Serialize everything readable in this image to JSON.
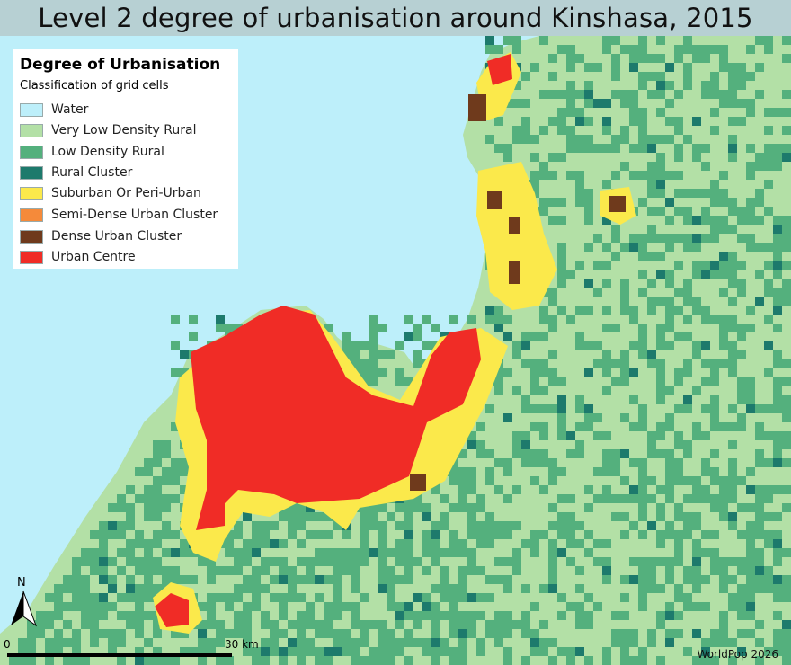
{
  "title": "Level 2 degree of urbanisation around Kinshasa, 2015",
  "legend": {
    "title": "Degree of Urbanisation",
    "subtitle": "Classification of grid cells",
    "items": [
      {
        "label": "Water",
        "color": "#bdeffa"
      },
      {
        "label": "Very Low Density Rural",
        "color": "#b3e0a6"
      },
      {
        "label": "Low Density Rural",
        "color": "#54b07d"
      },
      {
        "label": "Rural Cluster",
        "color": "#1d7a6c"
      },
      {
        "label": "Suburban Or Peri-Urban",
        "color": "#fbe94b"
      },
      {
        "label": "Semi-Dense Urban Cluster",
        "color": "#f58a3a"
      },
      {
        "label": "Dense Urban Cluster",
        "color": "#6f3a1c"
      },
      {
        "label": "Urban Centre",
        "color": "#f02c26"
      }
    ]
  },
  "north_label": "N",
  "scale": {
    "left_label": "0",
    "right_label": "30 km"
  },
  "credit": "WorldPop 2026"
}
